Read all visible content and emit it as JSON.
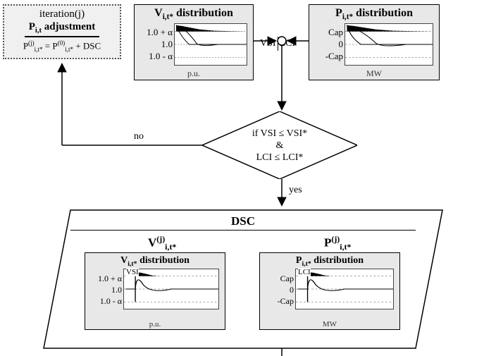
{
  "iteration": {
    "l1": "iteration(j)",
    "l2_html": "P<span class='sub'>i,t</span> adjustment",
    "l3_html": "P<span class='sup'>(j)</span><span class='sub'>i,t*</span> = P<span class='sup'>(0)</span><span class='sub'>i,t*</span> + DSC"
  },
  "v_dist": {
    "title_html": "V<span class='sub'>i,t*</span> distribution",
    "labels": [
      "1.0 + α",
      "1.0",
      "1.0 -  α"
    ],
    "unit": "p.u.",
    "black_fill": true,
    "fill_top": true
  },
  "p_dist": {
    "title_html": "P<span class='sub'>i,t*</span> distribution",
    "labels": [
      "Cap",
      "0",
      "-Cap"
    ],
    "unit": "MW",
    "black_fill": true,
    "fill_top": true
  },
  "middle": {
    "vsi": "VSI",
    "lci": "LCI"
  },
  "diamond": {
    "l1": "if VSI ≤ VSI*",
    "l2": "&",
    "l3": "LCI ≤ LCI*"
  },
  "no_label": "no",
  "yes_label": "yes",
  "dsc": {
    "title": "DSC",
    "v_col_html": "V<span class='sup'>(j)</span><span class='sub'>i,t*</span>",
    "p_col_html": "P<span class='sup'>(j)</span><span class='sub'>i,t*</span>",
    "v_inner": {
      "title_html": "V<span class='sub'>i,t*</span> distribution",
      "labels": [
        "1.0 + α",
        "1.0",
        "1.0 -  α"
      ],
      "unit": "p.u.",
      "tag": "VSI"
    },
    "p_inner": {
      "title_html": "P<span class='sub'>i,t*</span> distribution",
      "labels": [
        "Cap",
        "0",
        "-Cap"
      ],
      "unit": "MW",
      "tag": "LCI"
    }
  },
  "colors": {
    "box_bg": "#e8e8e8",
    "border": "#000000",
    "dotted": "#555555",
    "bg": "#ffffff"
  }
}
